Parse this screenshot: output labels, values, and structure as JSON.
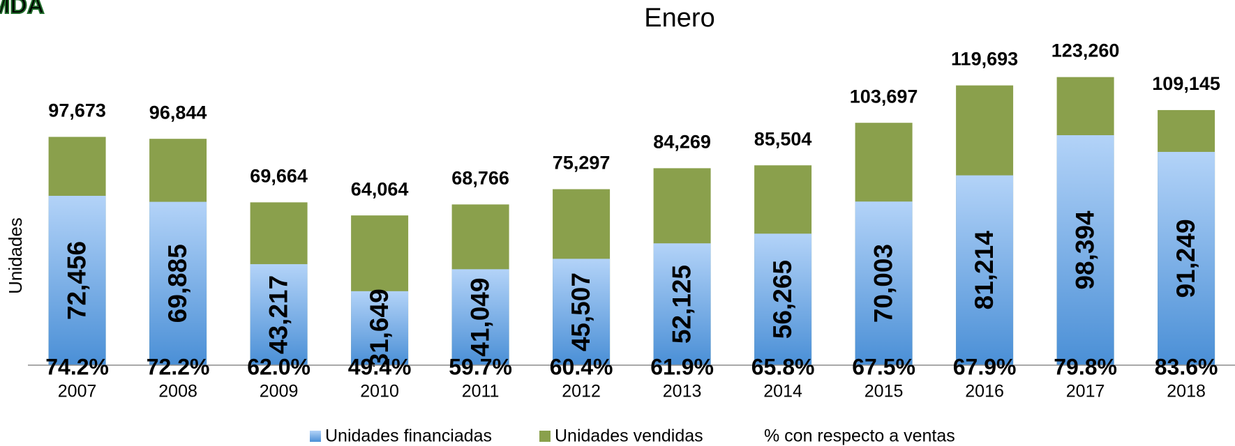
{
  "logo": "MDA",
  "chart_data": {
    "type": "bar",
    "title": "Enero",
    "y_label": "Unidades",
    "categories": [
      "2007",
      "2008",
      "2009",
      "2010",
      "2011",
      "2012",
      "2013",
      "2014",
      "2015",
      "2016",
      "2017",
      "2018"
    ],
    "ylim": [
      0,
      130000
    ],
    "series": [
      {
        "name": "Unidades financiadas",
        "color": "#4a8fd6",
        "values": [
          72456,
          69885,
          43217,
          31649,
          41049,
          45507,
          52125,
          56265,
          70003,
          81214,
          98394,
          91249
        ],
        "value_labels": [
          "72,456",
          "69,885",
          "43,217",
          "31,649",
          "41,049",
          "45,507",
          "52,125",
          "56,265",
          "70,003",
          "81,214",
          "98,394",
          "91,249"
        ]
      },
      {
        "name": "Unidades vendidas",
        "color": "#8aa04c",
        "values": [
          97673,
          96844,
          69664,
          64064,
          68766,
          75297,
          84269,
          85504,
          103697,
          119693,
          123260,
          109145
        ],
        "value_labels": [
          "97,673",
          "96,844",
          "69,664",
          "64,064",
          "68,766",
          "75,297",
          "84,269",
          "85,504",
          "103,697",
          "119,693",
          "123,260",
          "109,145"
        ]
      },
      {
        "name": "% con respecto a ventas",
        "values": [
          74.2,
          72.2,
          62.0,
          49.4,
          59.7,
          60.4,
          61.9,
          65.8,
          67.5,
          67.9,
          79.8,
          83.6
        ],
        "value_labels": [
          "74.2%",
          "72.2%",
          "62.0%",
          "49.4%",
          "59.7%",
          "60.4%",
          "61.9%",
          "65.8%",
          "67.5%",
          "67.9%",
          "79.8%",
          "83.6%"
        ]
      }
    ]
  }
}
